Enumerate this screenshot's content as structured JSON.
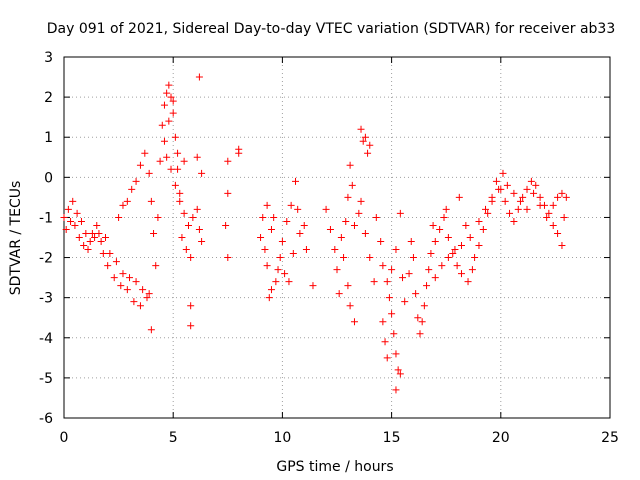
{
  "chart_data": {
    "type": "scatter",
    "title": "Day 091 of 2021, Sidereal Day-to-day VTEC variation (SDTVAR) for receiver ab33",
    "xlabel": "GPS time / hours",
    "ylabel": "SDTVAR / TECUs",
    "xlim": [
      0,
      25
    ],
    "ylim": [
      -6,
      3
    ],
    "xticks": [
      0,
      5,
      10,
      15,
      20,
      25
    ],
    "yticks": [
      -6,
      -5,
      -4,
      -3,
      -2,
      -1,
      0,
      1,
      2,
      3
    ],
    "grid": true,
    "legend": "none",
    "marker": "+",
    "color": "#ff0000",
    "series": [
      {
        "name": "SDTVAR",
        "points": [
          [
            0.0,
            -1.0
          ],
          [
            0.2,
            -0.8
          ],
          [
            0.4,
            -0.6
          ],
          [
            0.6,
            -0.9
          ],
          [
            0.8,
            -1.1
          ],
          [
            1.0,
            -1.4
          ],
          [
            1.2,
            -1.6
          ],
          [
            1.4,
            -1.5
          ],
          [
            1.6,
            -1.4
          ],
          [
            1.8,
            -1.9
          ],
          [
            2.0,
            -2.2
          ],
          [
            2.3,
            -2.5
          ],
          [
            2.6,
            -2.7
          ],
          [
            2.9,
            -2.8
          ],
          [
            3.2,
            -3.1
          ],
          [
            3.5,
            -3.2
          ],
          [
            3.8,
            -3.0
          ],
          [
            4.0,
            -3.8
          ],
          [
            0.1,
            -1.3
          ],
          [
            0.3,
            -1.1
          ],
          [
            0.5,
            -1.2
          ],
          [
            0.7,
            -1.5
          ],
          [
            0.9,
            -1.7
          ],
          [
            1.1,
            -1.8
          ],
          [
            1.3,
            -1.4
          ],
          [
            1.5,
            -1.2
          ],
          [
            1.7,
            -1.6
          ],
          [
            1.9,
            -1.5
          ],
          [
            2.1,
            -1.9
          ],
          [
            2.4,
            -2.1
          ],
          [
            2.7,
            -2.4
          ],
          [
            3.0,
            -2.5
          ],
          [
            3.3,
            -2.6
          ],
          [
            3.6,
            -2.8
          ],
          [
            3.9,
            -2.9
          ],
          [
            2.5,
            -1.0
          ],
          [
            2.7,
            -0.7
          ],
          [
            2.9,
            -0.6
          ],
          [
            3.1,
            -0.3
          ],
          [
            3.3,
            -0.1
          ],
          [
            3.5,
            0.3
          ],
          [
            3.7,
            0.6
          ],
          [
            3.9,
            0.1
          ],
          [
            4.0,
            -0.6
          ],
          [
            4.1,
            -1.4
          ],
          [
            4.2,
            -2.2
          ],
          [
            4.3,
            -1.0
          ],
          [
            4.4,
            0.4
          ],
          [
            4.5,
            1.3
          ],
          [
            4.6,
            1.8
          ],
          [
            4.7,
            2.1
          ],
          [
            4.8,
            2.3
          ],
          [
            4.9,
            2.0
          ],
          [
            5.0,
            1.6
          ],
          [
            5.1,
            1.0
          ],
          [
            5.2,
            0.6
          ],
          [
            4.6,
            0.9
          ],
          [
            4.8,
            1.4
          ],
          [
            5.0,
            1.9
          ],
          [
            4.7,
            0.5
          ],
          [
            4.9,
            0.2
          ],
          [
            5.1,
            -0.2
          ],
          [
            5.3,
            -0.6
          ],
          [
            5.5,
            -0.9
          ],
          [
            5.7,
            -1.2
          ],
          [
            5.9,
            -1.0
          ],
          [
            6.1,
            -0.8
          ],
          [
            6.2,
            -1.3
          ],
          [
            6.3,
            -1.6
          ],
          [
            5.4,
            -1.5
          ],
          [
            5.6,
            -1.8
          ],
          [
            5.8,
            -2.0
          ],
          [
            5.2,
            0.2
          ],
          [
            5.3,
            -0.4
          ],
          [
            5.5,
            0.4
          ],
          [
            6.1,
            0.5
          ],
          [
            6.3,
            0.1
          ],
          [
            6.2,
            2.5
          ],
          [
            5.8,
            -3.2
          ],
          [
            5.8,
            -3.7
          ],
          [
            7.5,
            0.4
          ],
          [
            7.5,
            -0.4
          ],
          [
            7.4,
            -1.2
          ],
          [
            7.5,
            -2.0
          ],
          [
            8.0,
            0.7
          ],
          [
            8.0,
            0.6
          ],
          [
            9.0,
            -1.5
          ],
          [
            9.2,
            -1.8
          ],
          [
            9.3,
            -2.2
          ],
          [
            9.5,
            -1.3
          ],
          [
            9.6,
            -1.0
          ],
          [
            9.8,
            -2.3
          ],
          [
            9.9,
            -2.0
          ],
          [
            10.0,
            -1.6
          ],
          [
            10.2,
            -1.1
          ],
          [
            10.4,
            -0.7
          ],
          [
            10.5,
            -1.9
          ],
          [
            10.6,
            -0.1
          ],
          [
            10.7,
            -0.8
          ],
          [
            10.8,
            -1.4
          ],
          [
            11.0,
            -1.2
          ],
          [
            11.1,
            -1.8
          ],
          [
            9.4,
            -3.0
          ],
          [
            9.5,
            -2.8
          ],
          [
            9.7,
            -2.6
          ],
          [
            10.1,
            -2.4
          ],
          [
            10.3,
            -2.6
          ],
          [
            11.4,
            -2.7
          ],
          [
            9.3,
            -0.7
          ],
          [
            9.1,
            -1.0
          ],
          [
            12.0,
            -0.8
          ],
          [
            12.2,
            -1.3
          ],
          [
            12.4,
            -1.8
          ],
          [
            12.5,
            -2.3
          ],
          [
            12.6,
            -2.9
          ],
          [
            12.8,
            -2.0
          ],
          [
            12.9,
            -1.1
          ],
          [
            13.0,
            -0.5
          ],
          [
            13.1,
            0.3
          ],
          [
            13.2,
            -0.2
          ],
          [
            13.3,
            -1.2
          ],
          [
            13.0,
            -2.7
          ],
          [
            13.1,
            -3.2
          ],
          [
            13.3,
            -3.6
          ],
          [
            12.7,
            -1.5
          ],
          [
            13.5,
            -0.9
          ],
          [
            13.6,
            -0.6
          ],
          [
            13.8,
            -1.4
          ],
          [
            14.0,
            -2.0
          ],
          [
            14.2,
            -2.6
          ],
          [
            13.6,
            1.2
          ],
          [
            13.8,
            1.0
          ],
          [
            14.0,
            0.8
          ],
          [
            13.7,
            0.9
          ],
          [
            13.9,
            0.6
          ],
          [
            14.3,
            -1.0
          ],
          [
            14.5,
            -1.6
          ],
          [
            14.6,
            -2.2
          ],
          [
            14.8,
            -2.6
          ],
          [
            14.9,
            -3.0
          ],
          [
            15.0,
            -3.4
          ],
          [
            15.1,
            -3.9
          ],
          [
            15.2,
            -4.4
          ],
          [
            15.3,
            -4.8
          ],
          [
            15.2,
            -5.3
          ],
          [
            15.4,
            -4.9
          ],
          [
            14.6,
            -3.6
          ],
          [
            14.7,
            -4.1
          ],
          [
            14.8,
            -4.5
          ],
          [
            15.0,
            -2.3
          ],
          [
            15.2,
            -1.8
          ],
          [
            15.4,
            -0.9
          ],
          [
            15.5,
            -2.5
          ],
          [
            15.6,
            -3.1
          ],
          [
            15.8,
            -2.4
          ],
          [
            15.9,
            -1.6
          ],
          [
            16.0,
            -2.0
          ],
          [
            16.1,
            -2.9
          ],
          [
            16.2,
            -3.5
          ],
          [
            16.3,
            -3.9
          ],
          [
            16.4,
            -3.6
          ],
          [
            16.5,
            -3.2
          ],
          [
            16.6,
            -2.7
          ],
          [
            16.7,
            -2.3
          ],
          [
            16.8,
            -1.9
          ],
          [
            17.0,
            -1.6
          ],
          [
            17.2,
            -1.3
          ],
          [
            17.4,
            -1.0
          ],
          [
            17.6,
            -1.5
          ],
          [
            17.8,
            -1.9
          ],
          [
            18.0,
            -2.2
          ],
          [
            18.2,
            -1.7
          ],
          [
            18.4,
            -1.2
          ],
          [
            18.6,
            -1.5
          ],
          [
            18.8,
            -2.0
          ],
          [
            19.0,
            -1.7
          ],
          [
            19.2,
            -1.3
          ],
          [
            19.4,
            -0.9
          ],
          [
            19.6,
            -0.5
          ],
          [
            19.8,
            -0.1
          ],
          [
            20.0,
            -0.3
          ],
          [
            20.2,
            -0.6
          ],
          [
            20.4,
            -0.9
          ],
          [
            20.6,
            -1.1
          ],
          [
            20.8,
            -0.8
          ],
          [
            21.0,
            -0.5
          ],
          [
            21.2,
            -0.3
          ],
          [
            21.4,
            -0.1
          ],
          [
            21.6,
            -0.2
          ],
          [
            21.8,
            -0.5
          ],
          [
            22.0,
            -0.7
          ],
          [
            22.2,
            -0.9
          ],
          [
            22.4,
            -1.2
          ],
          [
            22.6,
            -1.4
          ],
          [
            22.8,
            -1.7
          ],
          [
            19.0,
            -1.1
          ],
          [
            19.3,
            -0.8
          ],
          [
            19.6,
            -0.6
          ],
          [
            19.9,
            -0.3
          ],
          [
            20.1,
            0.1
          ],
          [
            20.3,
            -0.2
          ],
          [
            20.6,
            -0.4
          ],
          [
            20.9,
            -0.6
          ],
          [
            21.2,
            -0.8
          ],
          [
            21.5,
            -0.4
          ],
          [
            21.8,
            -0.7
          ],
          [
            22.1,
            -1.0
          ],
          [
            22.4,
            -0.7
          ],
          [
            22.6,
            -0.5
          ],
          [
            22.8,
            -0.4
          ],
          [
            23.0,
            -0.5
          ],
          [
            22.9,
            -1.0
          ],
          [
            17.0,
            -2.5
          ],
          [
            17.3,
            -2.2
          ],
          [
            17.6,
            -2.0
          ],
          [
            17.9,
            -1.8
          ],
          [
            18.2,
            -2.4
          ],
          [
            18.5,
            -2.6
          ],
          [
            18.7,
            -2.3
          ],
          [
            16.9,
            -1.2
          ],
          [
            17.5,
            -0.8
          ],
          [
            18.1,
            -0.5
          ]
        ]
      }
    ]
  }
}
